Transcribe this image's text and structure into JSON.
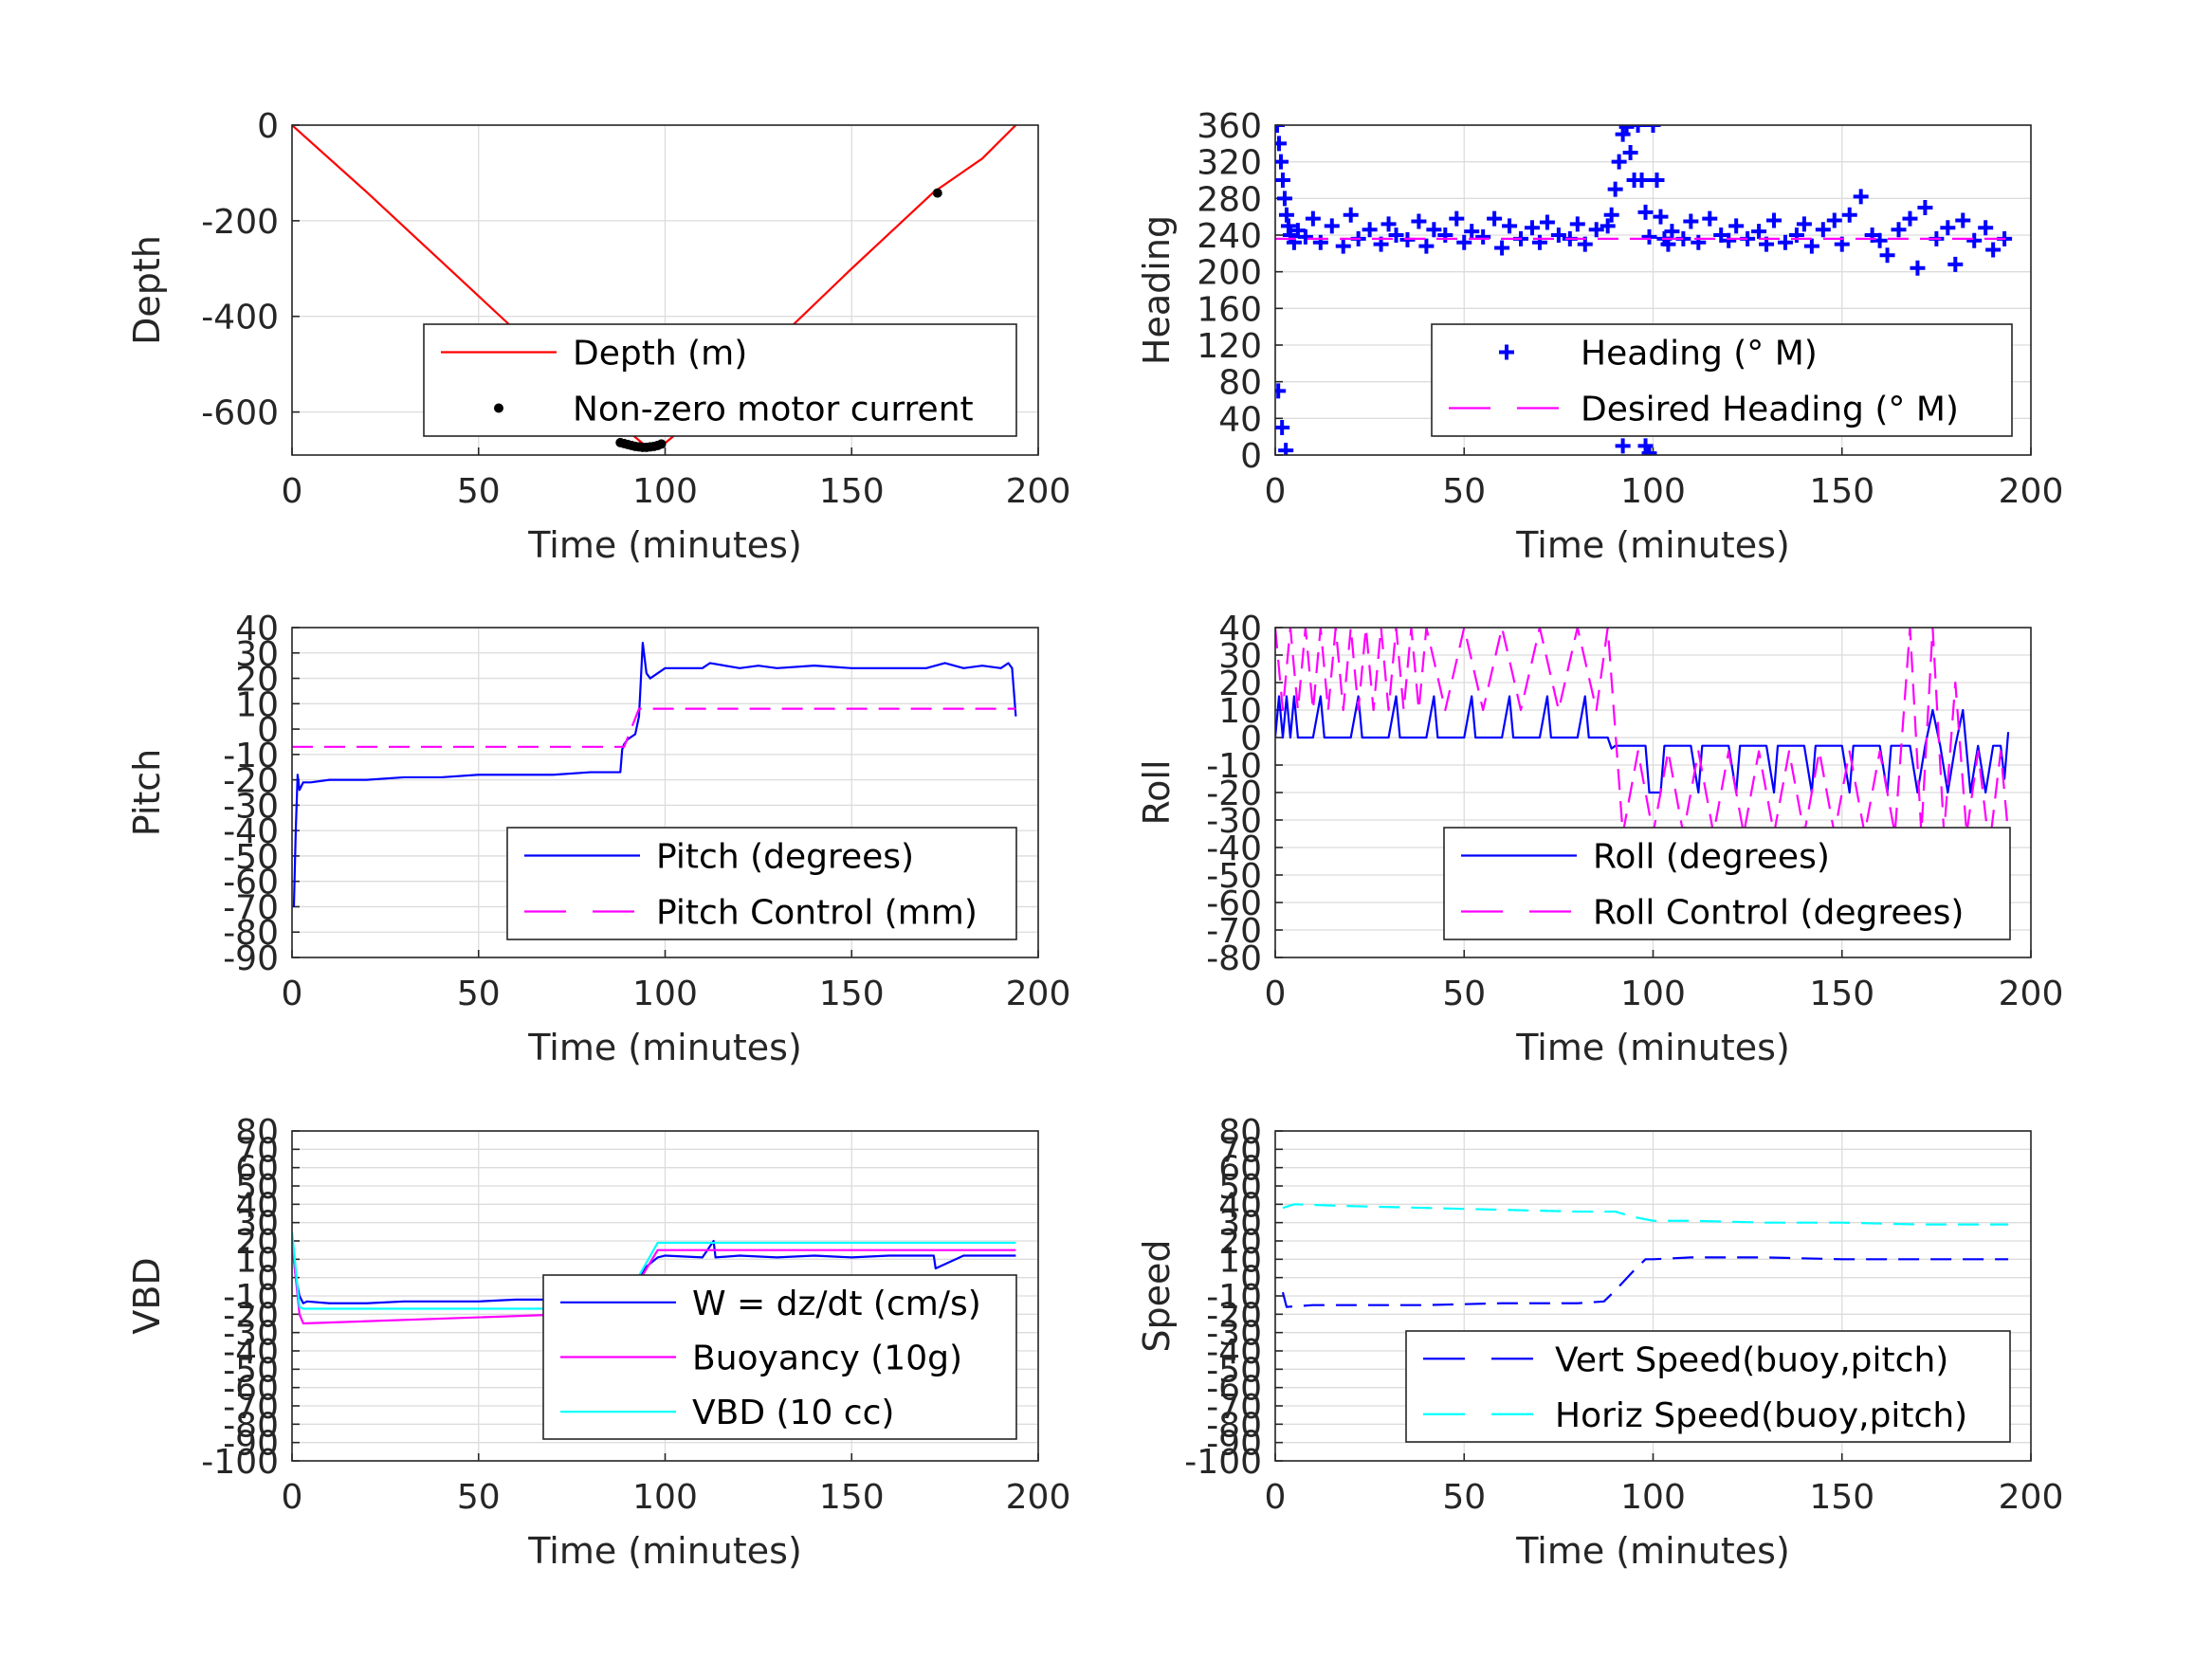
{
  "figure": {
    "colors": {
      "depth": "#ff0000",
      "marker": "#000000",
      "blue": "#0000ff",
      "magenta": "#ff00ff",
      "cyan": "#00ffff"
    }
  },
  "chart_data": [
    {
      "id": "depth",
      "type": "line",
      "title": "",
      "xlabel": "Time (minutes)",
      "ylabel": "Depth",
      "xlim": [
        0,
        200
      ],
      "ylim": [
        -690,
        0
      ],
      "xticks": [
        0,
        50,
        100,
        150,
        200
      ],
      "yticks": [
        0,
        -200,
        -400,
        -600
      ],
      "legend": "bottom-right",
      "grid": true,
      "series": [
        {
          "name": "Depth (m)",
          "style": "solid",
          "color": "#ff0000",
          "marker": "none",
          "x": [
            0,
            20,
            40,
            60,
            80,
            90,
            95,
            100,
            110,
            130,
            150,
            172,
            185,
            194
          ],
          "y": [
            0,
            -140,
            -285,
            -430,
            -575,
            -640,
            -672,
            -665,
            -600,
            -450,
            -300,
            -140,
            -70,
            0
          ]
        },
        {
          "name": "Non-zero motor current",
          "style": "none",
          "color": "#000000",
          "marker": "dot",
          "x": [
            88,
            89,
            90,
            91,
            92,
            93,
            94,
            95,
            96,
            97,
            98,
            99,
            173
          ],
          "y": [
            -664,
            -666,
            -668,
            -670,
            -672,
            -673,
            -674,
            -674,
            -673,
            -672,
            -670,
            -667,
            -142
          ]
        }
      ]
    },
    {
      "id": "heading",
      "type": "scatter",
      "title": "",
      "xlabel": "Time (minutes)",
      "ylabel": "Heading",
      "xlim": [
        0,
        200
      ],
      "ylim": [
        0,
        360
      ],
      "xticks": [
        0,
        50,
        100,
        150,
        200
      ],
      "yticks": [
        0,
        40,
        80,
        120,
        160,
        200,
        240,
        280,
        320,
        360
      ],
      "legend": "bottom-right",
      "grid": true,
      "series": [
        {
          "name": "Heading (° M)",
          "style": "none",
          "color": "#0000ff",
          "marker": "plus",
          "x": [
            0.5,
            1,
            1.5,
            2,
            2.5,
            3,
            3.5,
            4,
            5,
            6,
            8,
            10,
            12,
            15,
            18,
            20,
            22,
            25,
            28,
            30,
            32,
            35,
            38,
            40,
            42,
            45,
            48,
            50,
            52,
            55,
            58,
            60,
            62,
            65,
            68,
            70,
            72,
            75,
            78,
            80,
            82,
            85,
            88,
            89,
            90,
            91,
            92,
            93,
            94,
            95,
            96,
            97,
            98,
            99,
            100,
            101,
            102,
            103,
            104,
            105,
            108,
            110,
            112,
            115,
            118,
            120,
            122,
            125,
            128,
            130,
            132,
            135,
            138,
            140,
            142,
            145,
            148,
            150,
            152,
            155,
            158,
            160,
            162,
            165,
            168,
            170,
            172,
            175,
            178,
            180,
            182,
            185,
            188,
            190,
            193,
            0.8,
            1.8,
            2.8,
            92,
            93,
            94,
            95,
            96,
            97,
            98,
            99
          ],
          "y": [
            360,
            340,
            320,
            300,
            280,
            262,
            250,
            240,
            232,
            245,
            238,
            258,
            232,
            250,
            228,
            262,
            236,
            246,
            230,
            252,
            240,
            235,
            255,
            228,
            246,
            240,
            258,
            232,
            244,
            238,
            258,
            226,
            250,
            236,
            248,
            232,
            254,
            240,
            236,
            252,
            230,
            246,
            250,
            262,
            290,
            320,
            350,
            358,
            330,
            300,
            360,
            300,
            265,
            238,
            360,
            300,
            260,
            236,
            230,
            244,
            236,
            255,
            232,
            258,
            240,
            234,
            250,
            236,
            244,
            230,
            256,
            232,
            240,
            252,
            228,
            246,
            256,
            230,
            262,
            282,
            240,
            234,
            218,
            246,
            258,
            204,
            270,
            236,
            248,
            208,
            256,
            234,
            248,
            224,
            236,
            70,
            30,
            5,
            10,
            40,
            60,
            70,
            50,
            30,
            10,
            2
          ]
        },
        {
          "name": "Desired Heading (° M)",
          "style": "dashed",
          "color": "#ff00ff",
          "marker": "none",
          "x": [
            0,
            194
          ],
          "y": [
            236,
            236
          ]
        }
      ]
    },
    {
      "id": "pitch",
      "type": "line",
      "title": "",
      "xlabel": "Time (minutes)",
      "ylabel": "Pitch",
      "xlim": [
        0,
        200
      ],
      "ylim": [
        -90,
        40
      ],
      "xticks": [
        0,
        50,
        100,
        150,
        200
      ],
      "yticks": [
        40,
        30,
        20,
        10,
        0,
        -10,
        -20,
        -30,
        -40,
        -50,
        -60,
        -70,
        -80,
        -90
      ],
      "legend": "bottom-right",
      "grid": true,
      "series": [
        {
          "name": "Pitch (degrees)",
          "style": "solid",
          "color": "#0000ff",
          "marker": "none",
          "x": [
            0.5,
            1,
            1.5,
            2,
            3,
            5,
            10,
            20,
            30,
            40,
            50,
            60,
            70,
            80,
            88,
            88.5,
            89,
            90,
            91,
            92,
            93,
            94,
            95,
            96,
            98,
            100,
            110,
            112,
            120,
            125,
            130,
            140,
            150,
            160,
            170,
            175,
            180,
            185,
            190,
            192,
            193,
            194
          ],
          "y": [
            -70,
            -40,
            -18,
            -24,
            -21,
            -21,
            -20,
            -20,
            -19,
            -19,
            -18,
            -18,
            -18,
            -17,
            -17,
            -8,
            -6,
            -4,
            -3,
            -2,
            5,
            34,
            22,
            20,
            22,
            24,
            24,
            26,
            24,
            25,
            24,
            25,
            24,
            24,
            24,
            26,
            24,
            25,
            24,
            26,
            24,
            5
          ]
        },
        {
          "name": "Pitch Control (mm)",
          "style": "dashed",
          "color": "#ff00ff",
          "marker": "none",
          "x": [
            0,
            88,
            89,
            93,
            94,
            194
          ],
          "y": [
            -7,
            -7,
            -7,
            8,
            8,
            8
          ]
        }
      ]
    },
    {
      "id": "roll",
      "type": "line",
      "title": "",
      "xlabel": "Time (minutes)",
      "ylabel": "Roll",
      "xlim": [
        0,
        200
      ],
      "ylim": [
        -80,
        40
      ],
      "xticks": [
        0,
        50,
        100,
        150,
        200
      ],
      "yticks": [
        40,
        30,
        20,
        10,
        0,
        -10,
        -20,
        -30,
        -40,
        -50,
        -60,
        -70,
        -80
      ],
      "legend": "bottom-right",
      "grid": true,
      "series": [
        {
          "name": "Roll (degrees)",
          "style": "solid",
          "color": "#0000ff",
          "marker": "none",
          "x": [
            0,
            1,
            2,
            3,
            4,
            5,
            6,
            10,
            12,
            13,
            20,
            22,
            23,
            30,
            32,
            33,
            40,
            42,
            43,
            50,
            52,
            53,
            60,
            62,
            63,
            70,
            72,
            73,
            80,
            82,
            83,
            88,
            89,
            90,
            95,
            98,
            99,
            102,
            103,
            110,
            112,
            113,
            120,
            122,
            123,
            130,
            132,
            133,
            140,
            142,
            143,
            150,
            152,
            153,
            160,
            162,
            163,
            168,
            170,
            172,
            174,
            176,
            178,
            180,
            182,
            184,
            186,
            188,
            190,
            192,
            193,
            194
          ],
          "y": [
            0,
            15,
            0,
            15,
            0,
            15,
            0,
            0,
            15,
            0,
            0,
            15,
            0,
            0,
            15,
            0,
            0,
            15,
            0,
            0,
            15,
            0,
            0,
            15,
            0,
            0,
            15,
            0,
            0,
            15,
            0,
            0,
            -4,
            -3,
            -3,
            -3,
            -20,
            -20,
            -3,
            -3,
            -20,
            -3,
            -3,
            -20,
            -3,
            -3,
            -20,
            -3,
            -3,
            -20,
            -3,
            -3,
            -20,
            -3,
            -3,
            -20,
            -3,
            -3,
            -20,
            -3,
            10,
            -3,
            -20,
            -3,
            10,
            -20,
            -3,
            -20,
            -3,
            -3,
            -15,
            2
          ]
        },
        {
          "name": "Roll Control (degrees)",
          "style": "dashed",
          "color": "#ff00ff",
          "marker": "none",
          "x": [
            0,
            2,
            4,
            6,
            8,
            10,
            12,
            14,
            16,
            18,
            20,
            22,
            24,
            26,
            28,
            30,
            32,
            34,
            36,
            38,
            40,
            45,
            50,
            55,
            60,
            65,
            70,
            75,
            80,
            85,
            88,
            92,
            96,
            100,
            104,
            108,
            112,
            116,
            120,
            124,
            128,
            132,
            136,
            140,
            144,
            148,
            152,
            156,
            160,
            164,
            168,
            171,
            174,
            177,
            180,
            183,
            186,
            189,
            192,
            194
          ],
          "y": [
            40,
            10,
            40,
            10,
            40,
            10,
            40,
            10,
            40,
            10,
            40,
            10,
            40,
            10,
            40,
            10,
            40,
            10,
            40,
            10,
            40,
            10,
            40,
            10,
            40,
            10,
            40,
            10,
            40,
            10,
            40,
            -35,
            -5,
            -35,
            -5,
            -35,
            -5,
            -35,
            -5,
            -35,
            -5,
            -35,
            -5,
            -35,
            -5,
            -35,
            -5,
            -35,
            -5,
            -35,
            40,
            -35,
            40,
            -35,
            20,
            -35,
            -5,
            -40,
            -5,
            -35
          ]
        }
      ]
    },
    {
      "id": "vbd",
      "type": "line",
      "title": "",
      "xlabel": "Time (minutes)",
      "ylabel": "VBD",
      "xlim": [
        0,
        200
      ],
      "ylim": [
        -100,
        80
      ],
      "xticks": [
        0,
        50,
        100,
        150,
        200
      ],
      "yticks": [
        80,
        70,
        60,
        50,
        40,
        30,
        20,
        10,
        0,
        -10,
        -20,
        -30,
        -40,
        -50,
        -60,
        -70,
        -80,
        -90,
        -100
      ],
      "legend": "bottom-right",
      "grid": true,
      "series": [
        {
          "name": "W = dz/dt (cm/s)",
          "style": "solid",
          "color": "#0000ff",
          "marker": "none",
          "x": [
            0,
            1,
            2,
            3,
            4,
            10,
            20,
            30,
            40,
            50,
            60,
            70,
            80,
            88,
            90,
            95,
            98,
            100,
            110,
            113,
            113.5,
            120,
            130,
            140,
            150,
            160,
            172,
            172.5,
            180,
            190,
            194
          ],
          "y": [
            20,
            0,
            -10,
            -14,
            -13,
            -14,
            -14,
            -13,
            -13,
            -13,
            -12,
            -12,
            -12,
            -12,
            -8,
            6,
            11,
            12,
            11,
            20,
            11,
            12,
            11,
            12,
            11,
            12,
            12,
            5,
            12,
            12,
            12
          ]
        },
        {
          "name": "Buoyancy (10g)",
          "style": "solid",
          "color": "#ff00ff",
          "marker": "none",
          "x": [
            0,
            2,
            3,
            88,
            98,
            194
          ],
          "y": [
            20,
            -20,
            -25,
            -19,
            15,
            15
          ]
        },
        {
          "name": "VBD (10 cc)",
          "style": "solid",
          "color": "#00ffff",
          "marker": "none",
          "x": [
            0,
            2,
            3,
            88,
            98,
            194
          ],
          "y": [
            25,
            -16,
            -17,
            -17,
            19,
            19
          ]
        }
      ]
    },
    {
      "id": "speed",
      "type": "line",
      "title": "",
      "xlabel": "Time (minutes)",
      "ylabel": "Speed",
      "xlim": [
        0,
        200
      ],
      "ylim": [
        -100,
        80
      ],
      "xticks": [
        0,
        50,
        100,
        150,
        200
      ],
      "yticks": [
        80,
        70,
        60,
        50,
        40,
        30,
        20,
        10,
        0,
        -10,
        -20,
        -30,
        -40,
        -50,
        -60,
        -70,
        -80,
        -90,
        -100
      ],
      "legend": "bottom-right",
      "grid": true,
      "series": [
        {
          "name": "Vert Speed(buoy,pitch)",
          "style": "dashed",
          "color": "#0000ff",
          "marker": "none",
          "x": [
            2,
            3,
            10,
            20,
            40,
            60,
            80,
            87,
            90,
            95,
            98,
            100,
            110,
            130,
            150,
            170,
            190,
            194
          ],
          "y": [
            -8,
            -16,
            -15,
            -15,
            -15,
            -14,
            -14,
            -13,
            -7,
            4,
            10,
            10,
            11,
            11,
            10,
            10,
            10,
            10
          ]
        },
        {
          "name": "Horiz Speed(buoy,pitch)",
          "style": "dashed",
          "color": "#00ffff",
          "marker": "none",
          "x": [
            2,
            5,
            20,
            40,
            60,
            80,
            90,
            95,
            100,
            110,
            130,
            150,
            170,
            190,
            194
          ],
          "y": [
            38,
            40,
            39,
            38,
            37,
            36,
            36,
            33,
            31,
            31,
            30,
            30,
            29,
            29,
            29
          ]
        }
      ]
    }
  ]
}
